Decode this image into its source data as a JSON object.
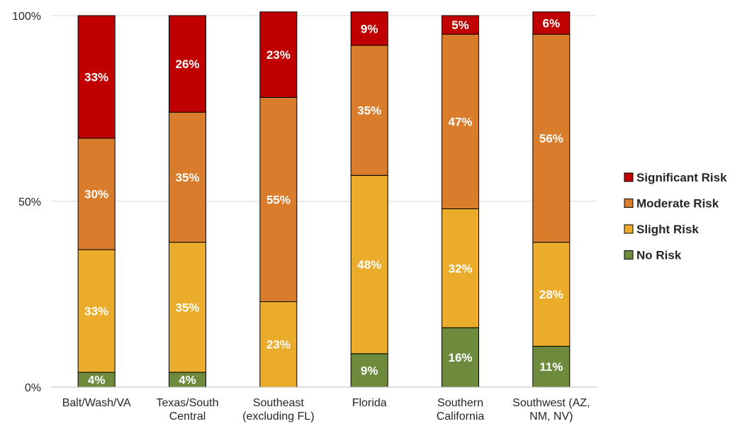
{
  "chart_data": {
    "type": "bar",
    "stacked": true,
    "percent_stacked": true,
    "categories": [
      [
        "Balt/Wash/VA"
      ],
      [
        "Texas/South",
        "Central"
      ],
      [
        "Southeast",
        "(excluding FL)"
      ],
      [
        "Florida"
      ],
      [
        "Southern",
        "California"
      ],
      [
        "Southwest (AZ,",
        "NM, NV)"
      ]
    ],
    "series": [
      {
        "name": "No Risk",
        "color": "#6e8b3d",
        "values": [
          4,
          4,
          0,
          9,
          16,
          11
        ]
      },
      {
        "name": "Slight Risk",
        "color": "#ebac2b",
        "values": [
          33,
          35,
          23,
          48,
          32,
          28
        ]
      },
      {
        "name": "Moderate Risk",
        "color": "#d97c2b",
        "values": [
          30,
          35,
          55,
          35,
          47,
          56
        ]
      },
      {
        "name": "Significant Risk",
        "color": "#c00000",
        "values": [
          33,
          26,
          23,
          9,
          5,
          6
        ]
      }
    ],
    "data_labels": [
      [
        "4%",
        "4%",
        "",
        "9%",
        "16%",
        "11%"
      ],
      [
        "33%",
        "35%",
        "23%",
        "48%",
        "32%",
        "28%"
      ],
      [
        "30%",
        "35%",
        "55%",
        "35%",
        "47%",
        "56%"
      ],
      [
        "33%",
        "26%",
        "23%",
        "9%",
        "5%",
        "6%"
      ]
    ],
    "y_ticks": [
      {
        "value": 0,
        "label": "0%"
      },
      {
        "value": 50,
        "label": "50%"
      },
      {
        "value": 100,
        "label": "100%"
      }
    ],
    "ylim": [
      0,
      100
    ],
    "grid": true,
    "legend_position": "right",
    "legend_order": [
      "Significant Risk",
      "Moderate Risk",
      "Slight Risk",
      "No Risk"
    ]
  }
}
